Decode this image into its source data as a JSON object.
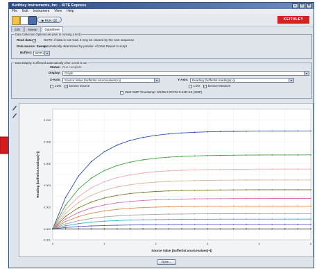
{
  "window": {
    "title": "Keithley Instruments, Inc.  - KITE Express"
  },
  "menu": [
    "File",
    "Edit",
    "Instrument",
    "View",
    "Help"
  ],
  "toolbar": {
    "run_label": "▶ RUN ⌫",
    "logo_text": "KEITHLEY"
  },
  "tabs": [
    "Edit",
    "Sweep",
    "DataSheet"
  ],
  "data_collection": {
    "legend": "Data Collection Options (set prior to running a test)",
    "read_data_label": "Read data:",
    "read_data_note": "NOTE: if data is not read, it may be cleared by the next sequence",
    "data_source_label": "Data source: Sweep",
    "data_source_note": "automatically determined by position of Data Report in script",
    "buffers_label": "Buffers:",
    "buffers_value": "BOTH"
  },
  "display": {
    "legend": "Data Display is affected automatically when a test is run",
    "status_label": "Status:",
    "status_value": "Run complete",
    "display_label": "Display:",
    "display_value": "Graph",
    "xaxis_label": "X-Axis:",
    "xaxis_value": "Source Value (bufferlist.sourcevalues(+))",
    "yaxis_label": "Y-Axis:",
    "yaxis_value": "Reading (bufferlist.readings(+))",
    "x_log": "LOG",
    "x_device_label": "Device Source",
    "y_log": "LOG",
    "y_device_label": "Device Measure",
    "timestamp_label": "Start SMP Timestamp: 3/2/08 2:23 PM 0.41E+13 (SMP)"
  },
  "open_button": "Open...",
  "chart_data": {
    "type": "line",
    "title": "",
    "xlabel": "Source Value (bufferlist.sourcevalues(+))",
    "ylabel": "Reading (bufferlist.readings(+))",
    "xlim": [
      0,
      5
    ],
    "ylim": [
      -0.001,
      0.011
    ],
    "x_ticks": [
      "0",
      "1",
      "2",
      "3",
      "4",
      "5"
    ],
    "y_ticks": [
      "0.010",
      "0.008",
      "0.006",
      "0.004",
      "0.002",
      "0.000",
      "-0.001"
    ],
    "grid": true,
    "x": [
      0,
      0.25,
      0.5,
      0.75,
      1.0,
      1.25,
      1.5,
      1.75,
      2.0,
      2.25,
      2.5,
      2.75,
      3.0,
      3.25,
      3.5,
      3.75,
      4.0,
      4.25,
      4.5,
      4.75,
      5.0
    ],
    "series": [
      {
        "color": "#2e4fb5",
        "sat": 0.009
      },
      {
        "color": "#3fa63a",
        "sat": 0.0068
      },
      {
        "color": "#f0a8b0",
        "sat": 0.0055
      },
      {
        "color": "#d8b8a0",
        "sat": 0.0045
      },
      {
        "color": "#7a7a2a",
        "sat": 0.0036
      },
      {
        "color": "#d070b8",
        "sat": 0.0028
      },
      {
        "color": "#e08a50",
        "sat": 0.0021
      },
      {
        "color": "#a4a4a4",
        "sat": 0.0014
      },
      {
        "color": "#30b0c0",
        "sat": 0.0009
      },
      {
        "color": "#5a5ac0",
        "sat": 0.0004
      },
      {
        "color": "#2a2a2a",
        "sat": 0.0
      }
    ]
  },
  "icons": {
    "new": "new-file-icon",
    "open": "open-folder-icon",
    "save": "save-icon",
    "pan": "pan-tool-icon",
    "zoom": "zoom-tool-icon"
  },
  "colors": {
    "accent": "#2c4a84",
    "logo": "#d42222",
    "arrow": "#d51b1b"
  }
}
